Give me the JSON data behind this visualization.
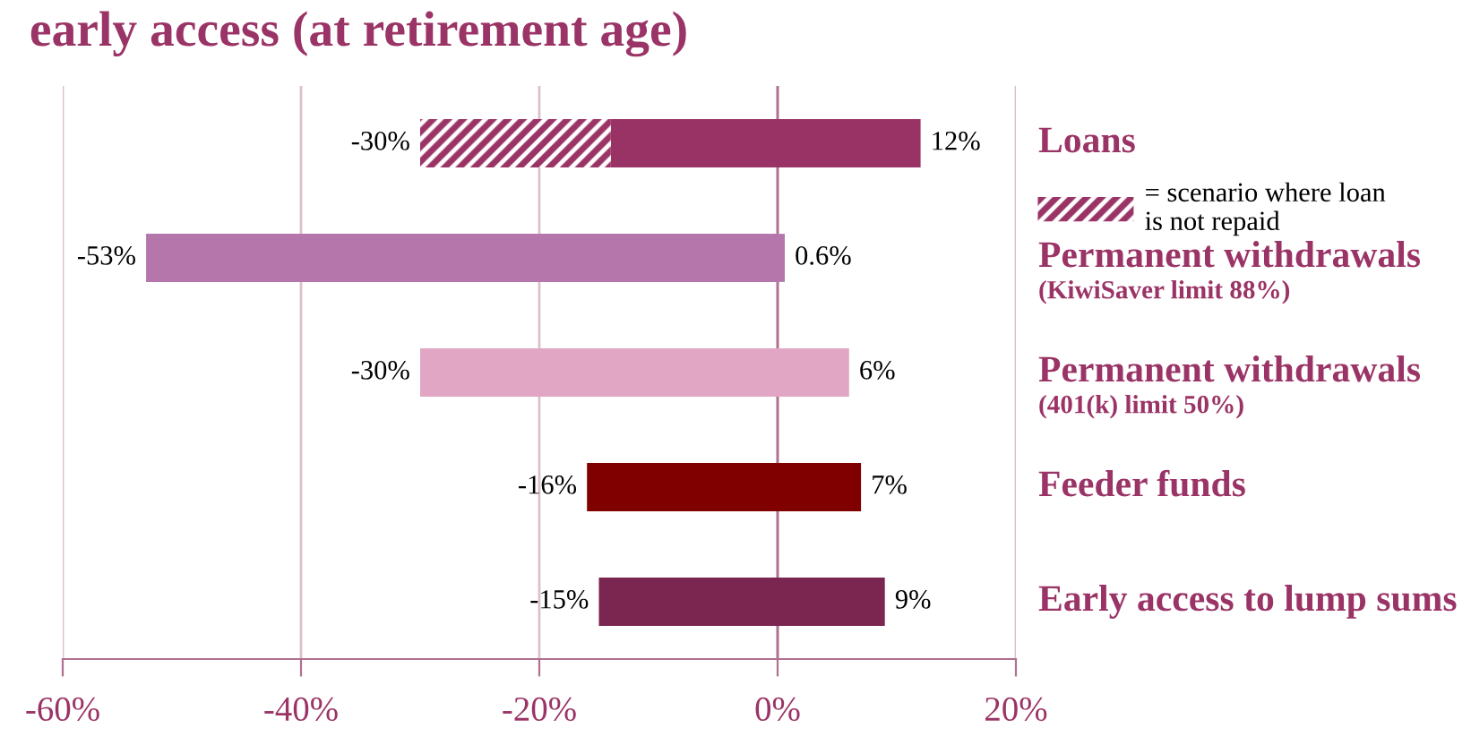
{
  "chart_data": {
    "type": "bar",
    "orientation": "horizontal",
    "title": "early access (at retirement age)",
    "categories": [
      "Loans",
      "Permanent withdrawals\n(KiwiSaver limit 88%)",
      "Permanent withdrawals\n(401(k) limit 50%)",
      "Feeder funds",
      "Early access to lump sums"
    ],
    "series": [
      {
        "colors": [
          "#993366",
          "#b476ab",
          "#e0a6c4",
          "#800000",
          "#7b2650"
        ],
        "values": [
          12,
          0.6,
          6,
          7,
          9
        ],
        "value_labels": [
          "12%",
          "0.6%",
          "6%",
          "7%",
          "9%"
        ]
      },
      {
        "colors": [
          "#993366",
          "#b476ab",
          "#e0a6c4",
          "#800000",
          "#7b2650"
        ],
        "values": [
          -14,
          -53,
          -30,
          -16,
          -15
        ],
        "value_labels": [
          null,
          "-53%",
          "-30%",
          "-16%",
          "-15%"
        ]
      },
      {
        "name": "= scenario where loan\nis not repaid",
        "color": "#9b3466",
        "values": [
          -16,
          null,
          null,
          null,
          null
        ]
      }
    ],
    "stacked": true,
    "annotations": [
      {
        "text": "-30%",
        "x": -30,
        "y": "Loans"
      }
    ],
    "xlim": [
      -60,
      20
    ],
    "xticks": [
      {
        "value": -60,
        "label": "-60%"
      },
      {
        "value": -40,
        "label": "-40%"
      },
      {
        "value": -20,
        "label": "-20%"
      },
      {
        "value": 0,
        "label": "0%"
      },
      {
        "value": 20,
        "label": "20%"
      }
    ],
    "ref_lines": [
      {
        "axis": "x",
        "value": 0,
        "color": "#b07090"
      }
    ],
    "grid": "x",
    "legend": "right"
  }
}
